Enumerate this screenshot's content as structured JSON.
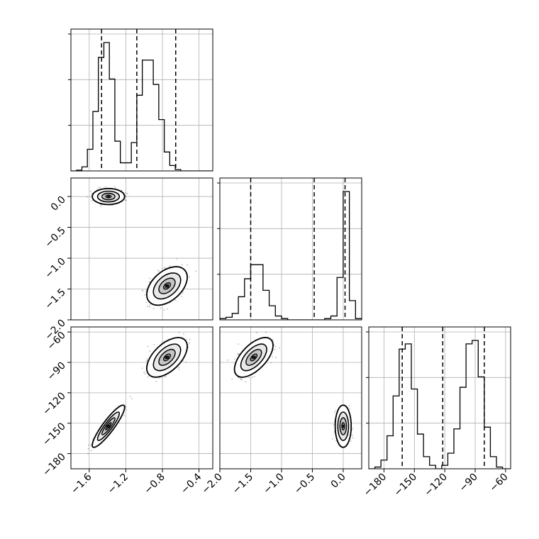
{
  "chart_data": {
    "type": "corner",
    "grid": true,
    "style": {
      "ink": "#000000",
      "grid": "#b0b0b0",
      "samples": "#7f7f7f",
      "background": "#ffffff"
    },
    "params": [
      {
        "range": [
          -1.8,
          -0.25
        ],
        "ticks": [
          -1.6,
          -1.2,
          -0.8,
          -0.4
        ],
        "tick_labels": [
          "−1.6",
          "−1.2",
          "−0.8",
          "−0.4"
        ],
        "quantiles": [
          -1.465,
          -1.08,
          -0.655
        ],
        "hist": {
          "edges": [
            -1.8,
            -1.74,
            -1.68,
            -1.62,
            -1.56,
            -1.5,
            -1.44,
            -1.38,
            -1.32,
            -1.26,
            -1.2,
            -1.14,
            -1.08,
            -1.02,
            -0.96,
            -0.9,
            -0.84,
            -0.78,
            -0.72,
            -0.66,
            -0.6,
            -0.54,
            -0.48,
            -0.42,
            -0.36,
            -0.3,
            -0.25
          ],
          "counts": [
            0.0,
            0.005,
            0.03,
            0.16,
            0.44,
            0.84,
            0.95,
            0.68,
            0.22,
            0.06,
            0.06,
            0.21,
            0.56,
            0.82,
            0.82,
            0.64,
            0.38,
            0.14,
            0.04,
            0.01,
            0.0,
            0.0,
            0.0,
            0.0,
            0.0,
            0.0
          ],
          "bins_note": ""
        }
      },
      {
        "range": [
          -2.0,
          0.3
        ],
        "ticks": [
          -2.0,
          -1.5,
          -1.0,
          -0.5,
          0.0
        ],
        "tick_labels": [
          "−2.0",
          "−1.5",
          "−1.0",
          "−0.5",
          "0.0"
        ],
        "quantiles": [
          -1.5,
          -0.47,
          0.03
        ],
        "hist": {
          "edges": [
            -2.0,
            -1.9,
            -1.8,
            -1.7,
            -1.6,
            -1.5,
            -1.4,
            -1.3,
            -1.2,
            -1.1,
            -1.0,
            -0.9,
            -0.8,
            -0.7,
            -0.6,
            -0.5,
            -0.4,
            -0.3,
            -0.2,
            -0.1,
            0.0,
            0.1,
            0.2,
            0.3
          ],
          "counts": [
            0.01,
            0.02,
            0.05,
            0.18,
            0.32,
            0.43,
            0.43,
            0.23,
            0.11,
            0.03,
            0.01,
            0.0,
            0.0,
            0.0,
            0.0,
            0.0,
            0.0,
            0.01,
            0.03,
            0.33,
            1.0,
            0.15,
            0.01
          ],
          "bins_note": ""
        }
      },
      {
        "range": [
          -195,
          -55
        ],
        "ticks": [
          -180,
          -150,
          -120,
          -90,
          -60
        ],
        "tick_labels": [
          "−180",
          "−150",
          "−120",
          "−90",
          "−60"
        ],
        "quantiles": [
          -162,
          -122,
          -81
        ],
        "hist": {
          "edges": [
            -195,
            -189,
            -183,
            -177,
            -171,
            -165,
            -159,
            -153,
            -147,
            -141,
            -135,
            -129,
            -123,
            -117,
            -111,
            -105,
            -99,
            -93,
            -87,
            -81,
            -75,
            -69,
            -63,
            -57,
            -55
          ],
          "counts": [
            0.0,
            0.01,
            0.05,
            0.19,
            0.42,
            0.69,
            0.72,
            0.46,
            0.2,
            0.07,
            0.02,
            0.0,
            0.02,
            0.09,
            0.23,
            0.47,
            0.72,
            0.74,
            0.53,
            0.24,
            0.07,
            0.01,
            0.0,
            0.0
          ],
          "bins_note": ""
        }
      }
    ],
    "clusters": [
      {
        "name": "",
        "mean": [
          -1.39,
          0.0,
          -153.0
        ],
        "sd": [
          0.068,
          0.05,
          8.0
        ],
        "corr": {
          "0-1": 0.0,
          "0-2": 0.9,
          "1-2": 0.0
        },
        "weight": 0.45
      },
      {
        "name": "",
        "mean": [
          -0.75,
          -1.45,
          -85.0
        ],
        "sd": [
          0.085,
          0.12,
          7.5
        ],
        "corr": {
          "0-1": 0.45,
          "0-2": 0.55,
          "1-2": 0.6
        },
        "weight": 0.55
      }
    ]
  }
}
